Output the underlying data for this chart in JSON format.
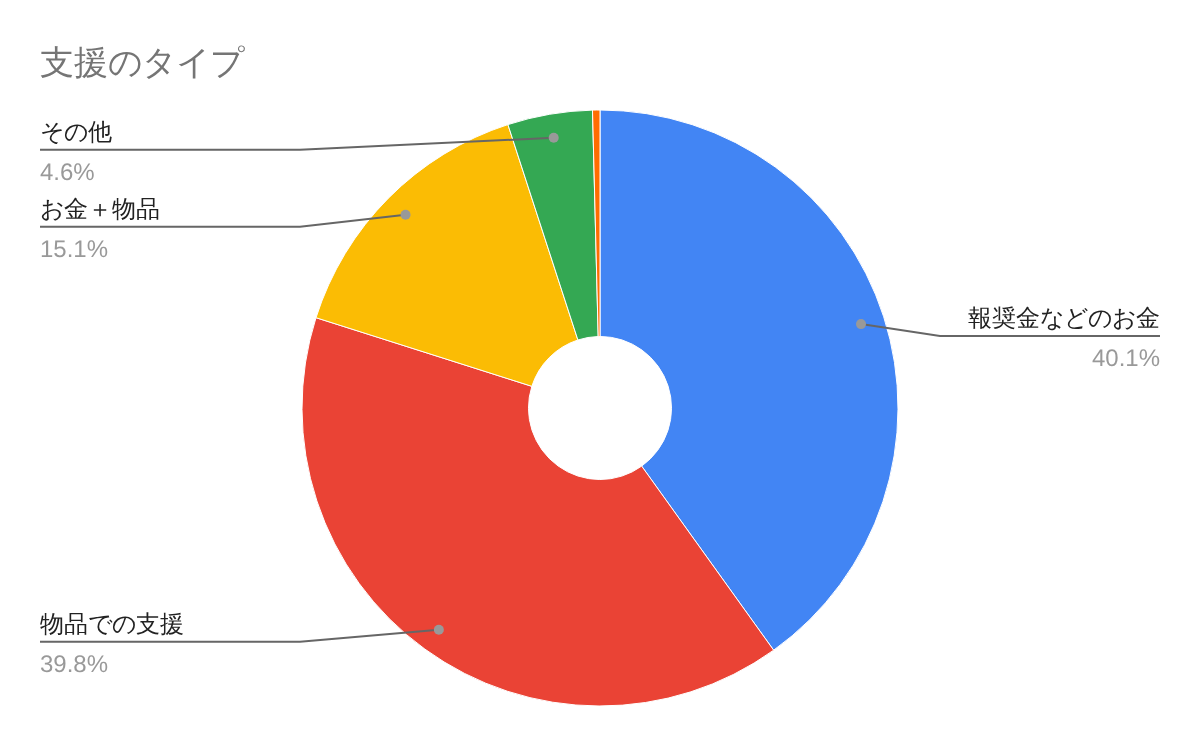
{
  "chart_data": {
    "type": "donut",
    "title": "支援のタイプ",
    "categories": [
      "報奨金などのお金",
      "物品での支援",
      "お金＋物品",
      "その他",
      null
    ],
    "values": [
      40.1,
      39.8,
      15.1,
      4.6,
      0.4
    ],
    "colors": [
      "#4285f4",
      "#ea4335",
      "#fbbc04",
      "#34a853",
      "#ff6d01"
    ],
    "value_labels": [
      "40.1%",
      "39.8%",
      "15.1%",
      "4.6%",
      null
    ],
    "legend": false
  }
}
